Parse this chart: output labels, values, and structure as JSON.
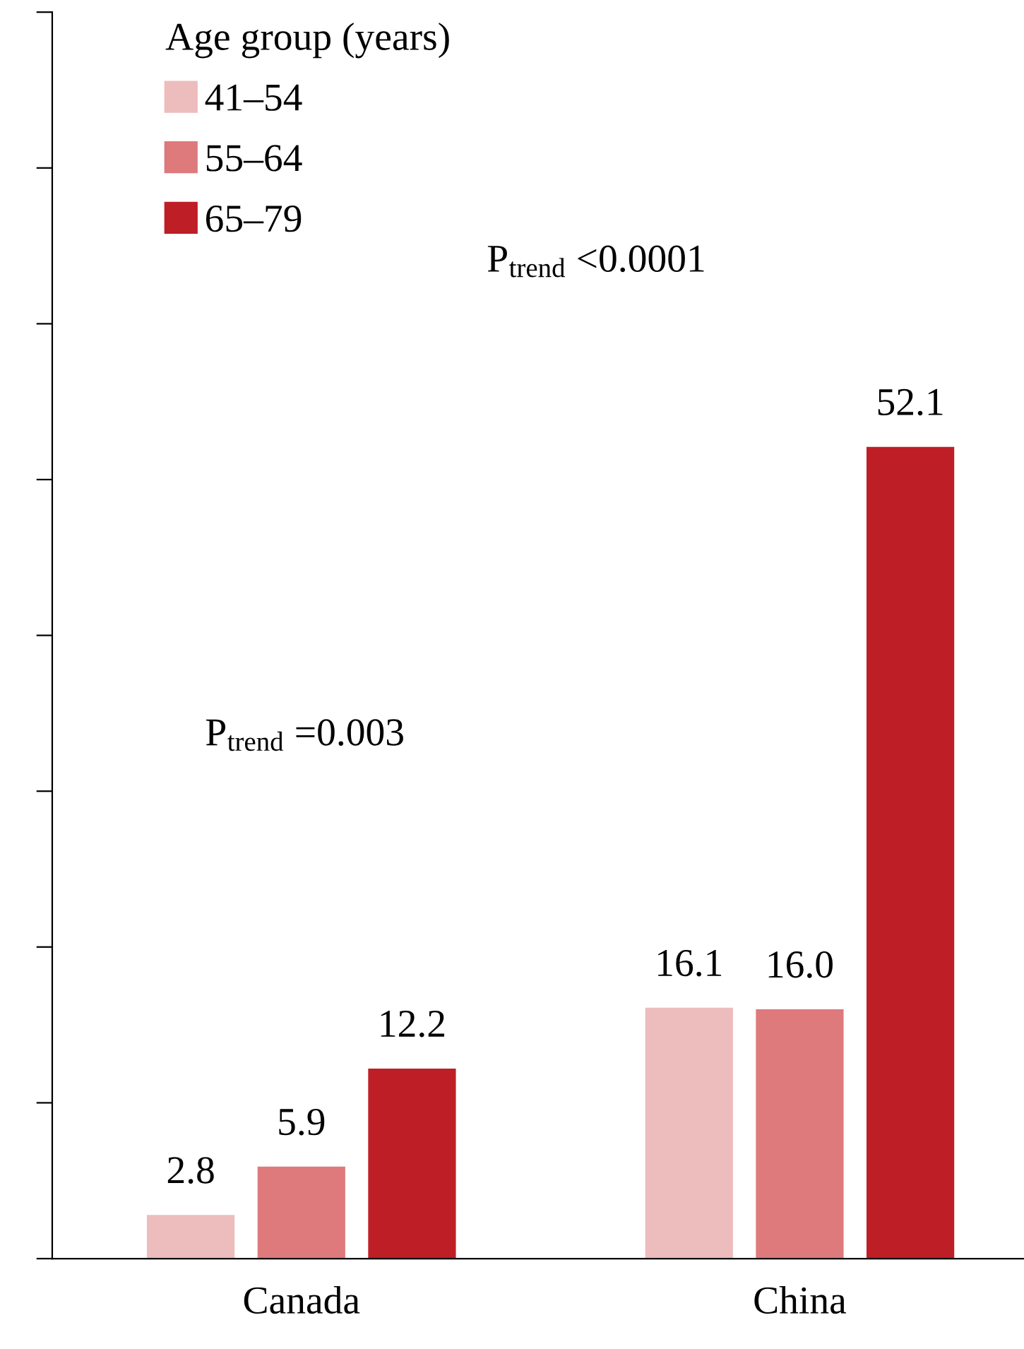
{
  "chart_data": {
    "type": "bar",
    "categories": [
      "Canada",
      "China"
    ],
    "series": [
      {
        "name": "41–54",
        "color": "#edbcbd",
        "values": [
          2.8,
          16.1
        ],
        "value_labels": [
          "2.8",
          "16.1"
        ]
      },
      {
        "name": "55–64",
        "color": "#de7a7c",
        "values": [
          5.9,
          16.0
        ],
        "value_labels": [
          "5.9",
          "16.0"
        ]
      },
      {
        "name": "65–79",
        "color": "#be1e26",
        "values": [
          12.2,
          52.1
        ],
        "value_labels": [
          "12.2",
          "52.1"
        ]
      }
    ],
    "legend": "top left",
    "legend_title": "Age group (years)",
    "ylim": [
      0,
      80
    ],
    "yticks": [
      {
        "value": 0,
        "label": null
      },
      {
        "value": 10,
        "label": null
      },
      {
        "value": 20,
        "label": null
      },
      {
        "value": 30,
        "label": null
      },
      {
        "value": 40,
        "label": null
      },
      {
        "value": 50,
        "label": null
      },
      {
        "value": 60,
        "label": null
      },
      {
        "value": 70,
        "label": null
      },
      {
        "value": 80,
        "label": null
      }
    ],
    "tick_labels": "x",
    "grid": false,
    "annotations": [
      "P$_{trend}$ =0.003",
      "P$_{trend}$ <0.0001"
    ]
  }
}
